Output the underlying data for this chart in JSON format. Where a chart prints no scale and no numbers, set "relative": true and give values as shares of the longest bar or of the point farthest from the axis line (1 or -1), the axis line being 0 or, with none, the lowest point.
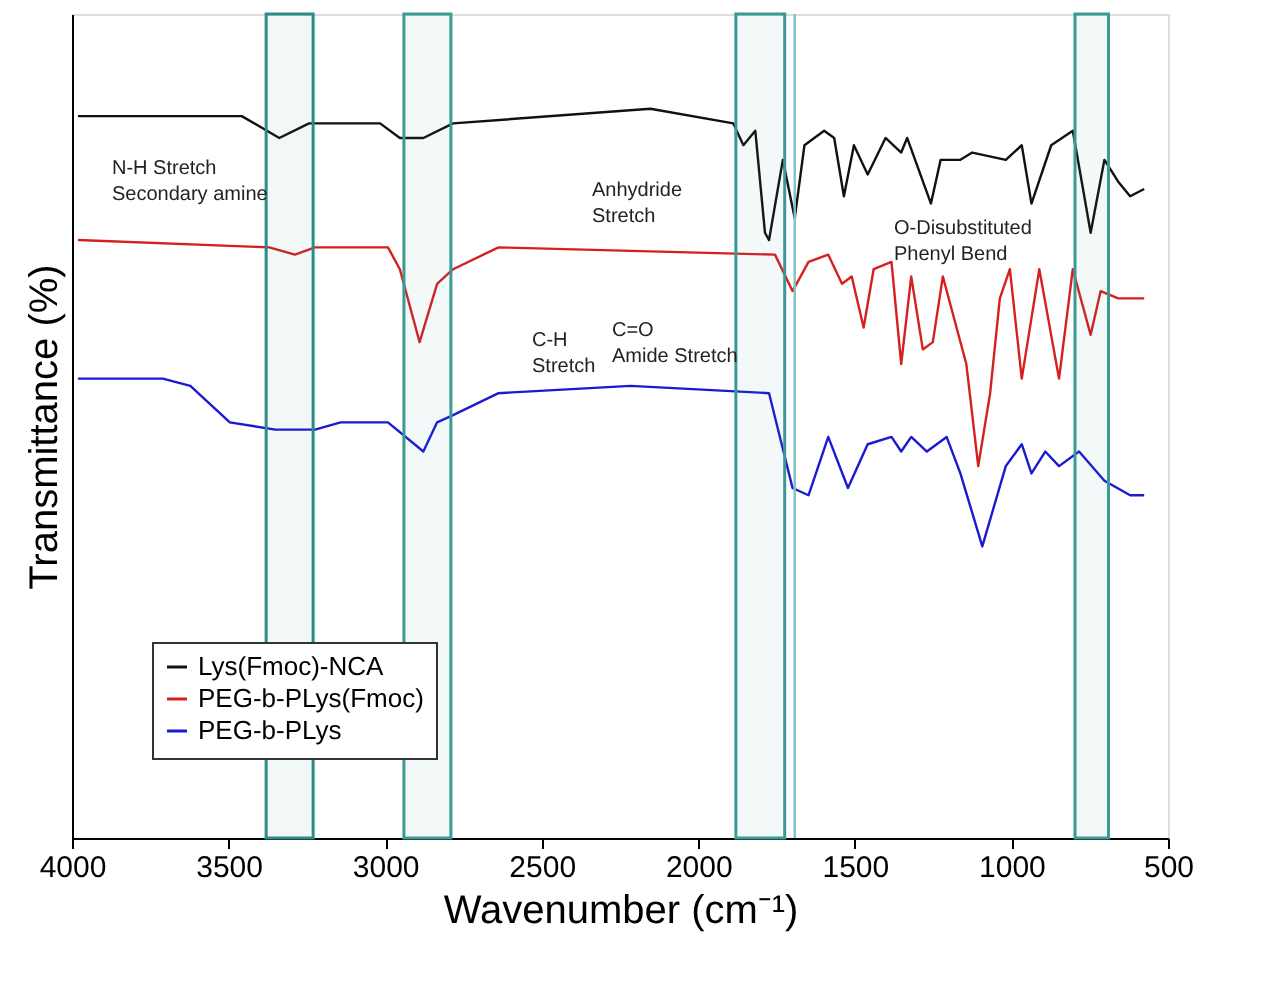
{
  "chart_data": {
    "type": "line",
    "relative": true,
    "xlabel": "Wavenumber (cm⁻¹)",
    "ylabel": "Transmittance (%)",
    "xlim": [
      4000,
      500
    ],
    "xticks": [
      4000,
      3500,
      3000,
      2500,
      2000,
      1500,
      1000,
      500
    ],
    "tick_labels": "x",
    "grid": false,
    "legend": "bottom left",
    "marker": "none",
    "line_style": "solid",
    "series": [
      {
        "name": "Lys(Fmoc)-NCA",
        "color": "#111111",
        "x": [
          3981,
          3458,
          3338,
          3243,
          3016,
          2953,
          2909,
          2878,
          2783,
          2153,
          1888,
          1856,
          1818,
          1787,
          1774,
          1730,
          1692,
          1661,
          1598,
          1566,
          1535,
          1503,
          1459,
          1402,
          1352,
          1333,
          1257,
          1226,
          1163,
          1125,
          1018,
          967,
          936,
          873,
          804,
          747,
          703,
          659,
          621,
          576
        ],
        "values": [
          0.99,
          0.99,
          0.96,
          0.98,
          0.98,
          0.96,
          0.96,
          0.96,
          0.98,
          1.0,
          0.98,
          0.95,
          0.97,
          0.83,
          0.82,
          0.93,
          0.85,
          0.95,
          0.97,
          0.96,
          0.88,
          0.95,
          0.91,
          0.96,
          0.94,
          0.96,
          0.87,
          0.93,
          0.93,
          0.94,
          0.93,
          0.95,
          0.87,
          0.95,
          0.97,
          0.83,
          0.93,
          0.9,
          0.88,
          0.89
        ]
      },
      {
        "name": "PEG-b-PLys(Fmoc)",
        "color": "#d62020",
        "x": [
          3981,
          3370,
          3288,
          3224,
          2991,
          2953,
          2890,
          2834,
          2783,
          2638,
          1755,
          1699,
          1648,
          1585,
          1541,
          1510,
          1472,
          1440,
          1383,
          1352,
          1320,
          1283,
          1251,
          1219,
          1144,
          1106,
          1068,
          1037,
          1005,
          967,
          911,
          848,
          804,
          747,
          715,
          659,
          576
        ],
        "values": [
          0.82,
          0.81,
          0.8,
          0.81,
          0.81,
          0.78,
          0.68,
          0.76,
          0.78,
          0.81,
          0.8,
          0.75,
          0.79,
          0.8,
          0.76,
          0.77,
          0.7,
          0.78,
          0.79,
          0.65,
          0.77,
          0.67,
          0.68,
          0.77,
          0.65,
          0.51,
          0.61,
          0.74,
          0.78,
          0.63,
          0.78,
          0.63,
          0.78,
          0.69,
          0.75,
          0.74,
          0.74
        ]
      },
      {
        "name": "PEG-b-PLys",
        "color": "#1a1ad0",
        "x": [
          3981,
          3710,
          3622,
          3496,
          3351,
          3224,
          3142,
          3054,
          2991,
          2878,
          2834,
          2783,
          2638,
          2216,
          1774,
          1699,
          1648,
          1585,
          1522,
          1459,
          1383,
          1352,
          1320,
          1270,
          1207,
          1163,
          1093,
          1018,
          967,
          936,
          892,
          848,
          784,
          703,
          621,
          576
        ],
        "values": [
          0.63,
          0.63,
          0.62,
          0.57,
          0.56,
          0.56,
          0.57,
          0.57,
          0.57,
          0.53,
          0.57,
          0.58,
          0.61,
          0.62,
          0.61,
          0.48,
          0.47,
          0.55,
          0.48,
          0.54,
          0.55,
          0.53,
          0.55,
          0.53,
          0.55,
          0.5,
          0.4,
          0.51,
          0.54,
          0.5,
          0.53,
          0.51,
          0.53,
          0.49,
          0.47,
          0.47
        ]
      }
    ],
    "bands": [
      {
        "axis": "x",
        "from": 3380,
        "to": 3230,
        "color": "#2a8c86"
      },
      {
        "axis": "x",
        "from": 2940,
        "to": 2790,
        "color": "#3a9a94"
      },
      {
        "axis": "x",
        "from": 1880,
        "to": 1724,
        "color": "#3a9a94"
      },
      {
        "axis": "x",
        "from": 797,
        "to": 690,
        "color": "#3a9a94"
      }
    ],
    "ref_lines": [
      {
        "axis": "x",
        "value": 1692,
        "color": "#7fc4c0",
        "line_style": "solid"
      }
    ],
    "annotations": [
      "N-H Stretch\nSecondary amine",
      "C-H\nStretch",
      "C=O\nAmide Stretch",
      "Anhydride\nStretch",
      "O-Disubstituted\nPhenyl Bend"
    ]
  }
}
